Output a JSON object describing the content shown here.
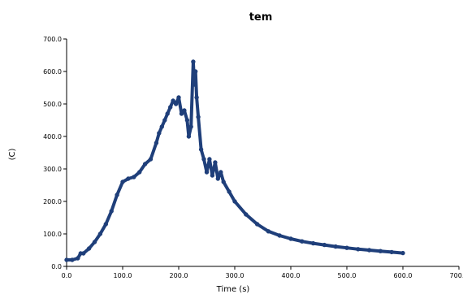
{
  "chart_data": {
    "type": "line",
    "title": "tem",
    "xlabel": "Time (s)",
    "ylabel": "(C)",
    "xlim": [
      0,
      700
    ],
    "ylim": [
      0,
      700
    ],
    "x_ticks": [
      "0.0",
      "100.0",
      "200.0",
      "300.0",
      "400.0",
      "500.0",
      "600.0",
      "700.0"
    ],
    "y_ticks": [
      "0.0",
      "100.0",
      "200.0",
      "300.0",
      "400.0",
      "500.0",
      "600.0",
      "700.0"
    ],
    "grid": false,
    "legend": "none",
    "series": [
      {
        "color": "#1f3f7a",
        "x": [
          0,
          10,
          20,
          25,
          30,
          40,
          50,
          60,
          70,
          80,
          90,
          100,
          110,
          120,
          130,
          140,
          150,
          160,
          165,
          170,
          175,
          180,
          185,
          190,
          195,
          200,
          205,
          210,
          215,
          218,
          222,
          226,
          228,
          230,
          232,
          235,
          240,
          245,
          250,
          255,
          260,
          265,
          270,
          275,
          280,
          290,
          300,
          320,
          340,
          360,
          380,
          400,
          420,
          440,
          460,
          480,
          500,
          520,
          540,
          560,
          580,
          600
        ],
        "y": [
          20,
          20,
          25,
          40,
          40,
          55,
          75,
          100,
          130,
          170,
          220,
          260,
          270,
          275,
          290,
          315,
          330,
          380,
          410,
          430,
          450,
          470,
          490,
          510,
          500,
          520,
          470,
          480,
          450,
          400,
          430,
          630,
          560,
          600,
          520,
          460,
          360,
          330,
          290,
          330,
          280,
          320,
          270,
          290,
          260,
          230,
          200,
          160,
          130,
          108,
          95,
          85,
          77,
          71,
          66,
          61,
          57,
          53,
          50,
          47,
          44,
          41
        ]
      }
    ]
  }
}
